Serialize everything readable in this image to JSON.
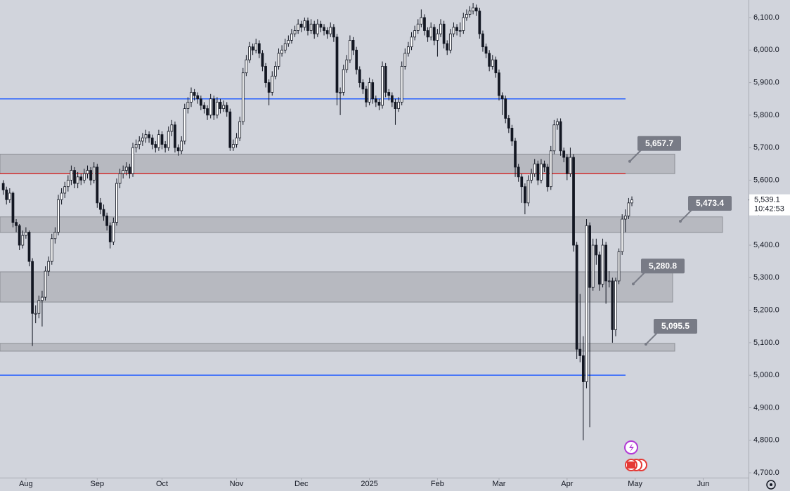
{
  "chart_data": {
    "type": "candlestick",
    "xlim": [
      -1,
      230
    ],
    "xticks": [
      {
        "value": 7,
        "label": "Aug"
      },
      {
        "value": 29,
        "label": "Sep"
      },
      {
        "value": 49,
        "label": "Oct"
      },
      {
        "value": 72,
        "label": "Nov"
      },
      {
        "value": 92,
        "label": "Dec"
      },
      {
        "value": 113,
        "label": "2025"
      },
      {
        "value": 134,
        "label": "Feb"
      },
      {
        "value": 153,
        "label": "Mar"
      },
      {
        "value": 174,
        "label": "Apr"
      },
      {
        "value": 195,
        "label": "May"
      },
      {
        "value": 216,
        "label": "Jun"
      }
    ],
    "ylim": [
      4685,
      6154
    ],
    "yticks": [
      {
        "value": 4700,
        "label": "4,700.0"
      },
      {
        "value": 4800,
        "label": "4,800.0"
      },
      {
        "value": 4900,
        "label": "4,900.0"
      },
      {
        "value": 5000,
        "label": "5,000.0"
      },
      {
        "value": 5100,
        "label": "5,100.0"
      },
      {
        "value": 5200,
        "label": "5,200.0"
      },
      {
        "value": 5300,
        "label": "5,300.0"
      },
      {
        "value": 5400,
        "label": "5,400.0"
      },
      {
        "value": 5500,
        "label": "5,500.0"
      },
      {
        "value": 5600,
        "label": "5,600.0"
      },
      {
        "value": 5700,
        "label": "5,700.0"
      },
      {
        "value": 5800,
        "label": "5,800.0"
      },
      {
        "value": 5900,
        "label": "5,900.0"
      },
      {
        "value": 6000,
        "label": "6,000.0"
      },
      {
        "value": 6100,
        "label": "6,100.0"
      }
    ],
    "up_color": "#ffffff",
    "down_color": "#131722",
    "ohlc": [
      [
        5590,
        5600,
        5555,
        5570
      ],
      [
        5570,
        5580,
        5525,
        5540
      ],
      [
        5540,
        5575,
        5530,
        5560
      ],
      [
        5560,
        5565,
        5455,
        5470
      ],
      [
        5470,
        5480,
        5440,
        5460
      ],
      [
        5460,
        5465,
        5385,
        5400
      ],
      [
        5400,
        5445,
        5390,
        5430
      ],
      [
        5430,
        5455,
        5420,
        5440
      ],
      [
        5440,
        5445,
        5335,
        5350
      ],
      [
        5350,
        5360,
        5090,
        5190
      ],
      [
        5190,
        5215,
        5160,
        5190
      ],
      [
        5190,
        5245,
        5175,
        5230
      ],
      [
        5230,
        5260,
        5150,
        5240
      ],
      [
        5240,
        5335,
        5230,
        5320
      ],
      [
        5320,
        5365,
        5305,
        5350
      ],
      [
        5350,
        5435,
        5340,
        5420
      ],
      [
        5420,
        5455,
        5405,
        5440
      ],
      [
        5440,
        5555,
        5430,
        5540
      ],
      [
        5540,
        5575,
        5525,
        5560
      ],
      [
        5560,
        5595,
        5545,
        5580
      ],
      [
        5580,
        5615,
        5565,
        5600
      ],
      [
        5600,
        5645,
        5585,
        5630
      ],
      [
        5630,
        5640,
        5575,
        5590
      ],
      [
        5590,
        5625,
        5575,
        5610
      ],
      [
        5610,
        5620,
        5585,
        5600
      ],
      [
        5600,
        5635,
        5590,
        5620
      ],
      [
        5620,
        5645,
        5605,
        5630
      ],
      [
        5630,
        5640,
        5585,
        5600
      ],
      [
        5600,
        5655,
        5590,
        5640
      ],
      [
        5640,
        5650,
        5515,
        5530
      ],
      [
        5530,
        5545,
        5495,
        5510
      ],
      [
        5510,
        5525,
        5475,
        5490
      ],
      [
        5490,
        5500,
        5445,
        5460
      ],
      [
        5460,
        5470,
        5390,
        5410
      ],
      [
        5410,
        5485,
        5400,
        5470
      ],
      [
        5470,
        5605,
        5460,
        5590
      ],
      [
        5590,
        5635,
        5575,
        5620
      ],
      [
        5620,
        5645,
        5605,
        5630
      ],
      [
        5630,
        5655,
        5615,
        5640
      ],
      [
        5640,
        5650,
        5605,
        5620
      ],
      [
        5620,
        5715,
        5610,
        5700
      ],
      [
        5700,
        5725,
        5685,
        5710
      ],
      [
        5710,
        5735,
        5695,
        5720
      ],
      [
        5720,
        5745,
        5705,
        5730
      ],
      [
        5730,
        5755,
        5715,
        5740
      ],
      [
        5740,
        5750,
        5715,
        5730
      ],
      [
        5730,
        5740,
        5695,
        5710
      ],
      [
        5710,
        5720,
        5685,
        5700
      ],
      [
        5700,
        5755,
        5690,
        5740
      ],
      [
        5740,
        5750,
        5695,
        5710
      ],
      [
        5710,
        5720,
        5685,
        5700
      ],
      [
        5700,
        5765,
        5690,
        5750
      ],
      [
        5750,
        5785,
        5735,
        5770
      ],
      [
        5770,
        5780,
        5685,
        5700
      ],
      [
        5700,
        5710,
        5675,
        5690
      ],
      [
        5690,
        5735,
        5680,
        5720
      ],
      [
        5720,
        5835,
        5710,
        5820
      ],
      [
        5820,
        5855,
        5805,
        5840
      ],
      [
        5840,
        5885,
        5825,
        5870
      ],
      [
        5870,
        5880,
        5845,
        5860
      ],
      [
        5860,
        5870,
        5835,
        5850
      ],
      [
        5850,
        5860,
        5815,
        5830
      ],
      [
        5830,
        5840,
        5805,
        5820
      ],
      [
        5820,
        5830,
        5785,
        5800
      ],
      [
        5800,
        5865,
        5790,
        5850
      ],
      [
        5850,
        5860,
        5785,
        5800
      ],
      [
        5800,
        5855,
        5790,
        5840
      ],
      [
        5840,
        5850,
        5805,
        5820
      ],
      [
        5820,
        5845,
        5810,
        5830
      ],
      [
        5830,
        5840,
        5795,
        5810
      ],
      [
        5810,
        5820,
        5690,
        5700
      ],
      [
        5700,
        5725,
        5690,
        5710
      ],
      [
        5710,
        5745,
        5700,
        5730
      ],
      [
        5730,
        5795,
        5720,
        5780
      ],
      [
        5780,
        5945,
        5770,
        5930
      ],
      [
        5930,
        5985,
        5920,
        5970
      ],
      [
        5970,
        6025,
        5960,
        6010
      ],
      [
        6010,
        6020,
        5985,
        6000
      ],
      [
        6000,
        6035,
        5990,
        6020
      ],
      [
        6020,
        6030,
        5975,
        5990
      ],
      [
        5990,
        6000,
        5935,
        5950
      ],
      [
        5950,
        5960,
        5885,
        5900
      ],
      [
        5900,
        5910,
        5830,
        5870
      ],
      [
        5870,
        5935,
        5860,
        5920
      ],
      [
        5920,
        5965,
        5910,
        5950
      ],
      [
        5950,
        6005,
        5940,
        5990
      ],
      [
        5990,
        6015,
        5980,
        6000
      ],
      [
        6000,
        6035,
        5990,
        6020
      ],
      [
        6020,
        6045,
        6010,
        6030
      ],
      [
        6030,
        6065,
        6020,
        6050
      ],
      [
        6050,
        6075,
        6040,
        6060
      ],
      [
        6060,
        6095,
        6050,
        6080
      ],
      [
        6080,
        6090,
        6055,
        6070
      ],
      [
        6070,
        6100,
        6060,
        6090
      ],
      [
        6090,
        6100,
        6045,
        6060
      ],
      [
        6060,
        6095,
        6050,
        6080
      ],
      [
        6080,
        6090,
        6035,
        6050
      ],
      [
        6050,
        6095,
        6040,
        6080
      ],
      [
        6080,
        6090,
        6055,
        6070
      ],
      [
        6070,
        6080,
        6045,
        6060
      ],
      [
        6060,
        6070,
        6035,
        6050
      ],
      [
        6050,
        6085,
        6040,
        6070
      ],
      [
        6070,
        6080,
        6025,
        6040
      ],
      [
        6040,
        6050,
        5830,
        5870
      ],
      [
        5870,
        5885,
        5800,
        5870
      ],
      [
        5870,
        5955,
        5860,
        5940
      ],
      [
        5940,
        5985,
        5930,
        5970
      ],
      [
        5970,
        6045,
        5960,
        6030
      ],
      [
        6030,
        6040,
        5985,
        6000
      ],
      [
        6000,
        6010,
        5925,
        5940
      ],
      [
        5940,
        5950,
        5885,
        5900
      ],
      [
        5900,
        5910,
        5865,
        5880
      ],
      [
        5880,
        5890,
        5825,
        5840
      ],
      [
        5840,
        5915,
        5830,
        5900
      ],
      [
        5900,
        5910,
        5835,
        5850
      ],
      [
        5850,
        5860,
        5825,
        5840
      ],
      [
        5840,
        5850,
        5815,
        5830
      ],
      [
        5830,
        5965,
        5820,
        5950
      ],
      [
        5950,
        5960,
        5855,
        5870
      ],
      [
        5870,
        5880,
        5845,
        5860
      ],
      [
        5860,
        5870,
        5825,
        5840
      ],
      [
        5840,
        5850,
        5770,
        5820
      ],
      [
        5820,
        5855,
        5810,
        5840
      ],
      [
        5840,
        5965,
        5830,
        5950
      ],
      [
        5950,
        6005,
        5940,
        5990
      ],
      [
        5990,
        6025,
        5980,
        6010
      ],
      [
        6010,
        6055,
        6000,
        6040
      ],
      [
        6040,
        6075,
        6030,
        6060
      ],
      [
        6060,
        6095,
        6050,
        6080
      ],
      [
        6080,
        6125,
        6070,
        6100
      ],
      [
        6100,
        6110,
        6045,
        6060
      ],
      [
        6060,
        6070,
        6025,
        6040
      ],
      [
        6040,
        6085,
        6030,
        6070
      ],
      [
        6070,
        6080,
        6015,
        6030
      ],
      [
        6030,
        6065,
        5980,
        6050
      ],
      [
        6050,
        6095,
        6040,
        6080
      ],
      [
        6080,
        6090,
        6005,
        6020
      ],
      [
        6020,
        6030,
        5985,
        6000
      ],
      [
        6000,
        6065,
        5990,
        6050
      ],
      [
        6050,
        6085,
        6040,
        6070
      ],
      [
        6070,
        6080,
        6045,
        6060
      ],
      [
        6060,
        6085,
        6040,
        6060
      ],
      [
        6060,
        6115,
        6050,
        6100
      ],
      [
        6100,
        6125,
        6090,
        6110
      ],
      [
        6110,
        6135,
        6100,
        6120
      ],
      [
        6120,
        6145,
        6110,
        6130
      ],
      [
        6130,
        6140,
        6105,
        6120
      ],
      [
        6120,
        6130,
        6035,
        6050
      ],
      [
        6050,
        6060,
        5995,
        6010
      ],
      [
        6010,
        6020,
        5975,
        5990
      ],
      [
        5990,
        6000,
        5935,
        5950
      ],
      [
        5950,
        5985,
        5940,
        5970
      ],
      [
        5970,
        5980,
        5915,
        5930
      ],
      [
        5930,
        5940,
        5845,
        5860
      ],
      [
        5860,
        5870,
        5800,
        5850
      ],
      [
        5850,
        5860,
        5775,
        5790
      ],
      [
        5790,
        5800,
        5745,
        5760
      ],
      [
        5760,
        5770,
        5705,
        5720
      ],
      [
        5720,
        5730,
        5610,
        5640
      ],
      [
        5640,
        5650,
        5595,
        5610
      ],
      [
        5610,
        5620,
        5530,
        5580
      ],
      [
        5580,
        5590,
        5495,
        5530
      ],
      [
        5530,
        5615,
        5520,
        5600
      ],
      [
        5600,
        5635,
        5590,
        5620
      ],
      [
        5620,
        5665,
        5610,
        5650
      ],
      [
        5650,
        5660,
        5585,
        5600
      ],
      [
        5600,
        5665,
        5590,
        5650
      ],
      [
        5650,
        5660,
        5625,
        5640
      ],
      [
        5640,
        5650,
        5565,
        5580
      ],
      [
        5580,
        5705,
        5570,
        5690
      ],
      [
        5690,
        5785,
        5680,
        5770
      ],
      [
        5770,
        5790,
        5755,
        5780
      ],
      [
        5780,
        5790,
        5675,
        5690
      ],
      [
        5690,
        5700,
        5655,
        5670
      ],
      [
        5670,
        5680,
        5600,
        5620
      ],
      [
        5620,
        5700,
        5610,
        5670
      ],
      [
        5670,
        5680,
        5380,
        5400
      ],
      [
        5400,
        5410,
        5050,
        5080
      ],
      [
        5080,
        5250,
        5040,
        5060
      ],
      [
        5060,
        5120,
        4800,
        4980
      ],
      [
        4980,
        5480,
        4960,
        5460
      ],
      [
        5460,
        5470,
        4840,
        5270
      ],
      [
        5270,
        5420,
        5260,
        5400
      ],
      [
        5400,
        5420,
        5340,
        5370
      ],
      [
        5370,
        5380,
        5260,
        5280
      ],
      [
        5280,
        5420,
        5270,
        5400
      ],
      [
        5400,
        5410,
        5220,
        5290
      ],
      [
        5290,
        5320,
        5270,
        5290
      ],
      [
        5290,
        5300,
        5100,
        5140
      ],
      [
        5140,
        5300,
        5120,
        5290
      ],
      [
        5290,
        5390,
        5280,
        5380
      ],
      [
        5380,
        5495,
        5370,
        5480
      ],
      [
        5480,
        5510,
        5440,
        5490
      ],
      [
        5490,
        5545,
        5480,
        5530
      ],
      [
        5530,
        5550,
        5520,
        5539.1
      ]
    ],
    "levels": [
      {
        "value": 5850,
        "color": "#2962ff"
      },
      {
        "value": 5620,
        "color": "#d32f2f"
      },
      {
        "value": 5000,
        "color": "#2962ff"
      }
    ],
    "zones": [
      {
        "low": 5620,
        "high": 5680,
        "value": 5657.7,
        "value_label": "5,657.7"
      },
      {
        "low": 5439,
        "high": 5487,
        "value": 5473.4,
        "value_label": "5,473.4"
      },
      {
        "low": 5225,
        "high": 5318,
        "value": 5280.8,
        "value_label": "5,280.8"
      },
      {
        "low": 5074,
        "high": 5098,
        "value": 5095.5,
        "value_label": "5,095.5"
      }
    ],
    "last_price": {
      "value": 5539.1,
      "label": "5,539.1",
      "time": "10:42:53"
    }
  }
}
